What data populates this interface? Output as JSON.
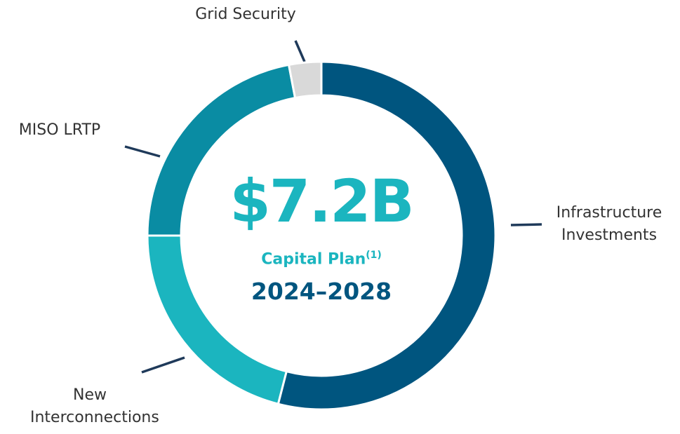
{
  "chart_data": {
    "type": "donut",
    "categories": [
      "Infrastructure Investments",
      "New Interconnections",
      "MISO LRTP",
      "Grid Security"
    ],
    "values": [
      54,
      21,
      22,
      3
    ],
    "colors": [
      "#00557f",
      "#1bb5bf",
      "#0a8ca3",
      "#d9d9d9"
    ],
    "center_title": "$7.2B",
    "center_subtitle": "Capital Plan",
    "center_footnote": "(1)",
    "center_period": "2024–2028"
  }
}
